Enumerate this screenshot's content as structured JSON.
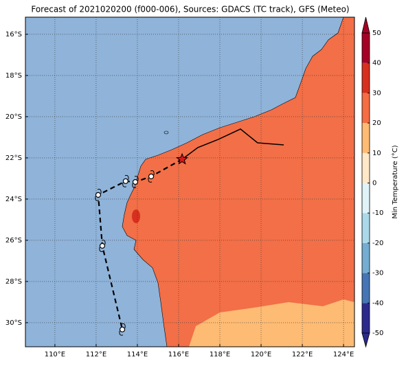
{
  "chart_data": {
    "type": "map",
    "title": "Forecast of 2021020200 (f000-006), Sources: GDACS (TC track), GFS (Meteo)",
    "xlim": [
      108.57,
      124.53
    ],
    "ylim": [
      -31.17,
      -15.17
    ],
    "xticks": [
      {
        "value": 110,
        "label": "110°E"
      },
      {
        "value": 112,
        "label": "112°E"
      },
      {
        "value": 114,
        "label": "114°E"
      },
      {
        "value": 116,
        "label": "116°E"
      },
      {
        "value": 118,
        "label": "118°E"
      },
      {
        "value": 120,
        "label": "120°E"
      },
      {
        "value": 122,
        "label": "122°E"
      },
      {
        "value": 124,
        "label": "124°E"
      }
    ],
    "yticks": [
      {
        "value": -16,
        "label": "16°S"
      },
      {
        "value": -18,
        "label": "18°S"
      },
      {
        "value": -20,
        "label": "20°S"
      },
      {
        "value": -22,
        "label": "22°S"
      },
      {
        "value": -24,
        "label": "24°S"
      },
      {
        "value": -26,
        "label": "26°S"
      },
      {
        "value": -28,
        "label": "28°S"
      },
      {
        "value": -30,
        "label": "30°S"
      }
    ],
    "grid": true,
    "forecast_track": {
      "lon": [
        116.17,
        114.67,
        113.9,
        113.43,
        112.1,
        112.3,
        113.27
      ],
      "lat": [
        -22.07,
        -22.9,
        -23.17,
        -23.13,
        -23.8,
        -26.27,
        -30.33
      ]
    },
    "past_track": {
      "lon": [
        116.17,
        116.93,
        117.93,
        119.0,
        119.83,
        121.1
      ],
      "lat": [
        -22.07,
        -21.5,
        -21.1,
        -20.6,
        -21.27,
        -21.37
      ]
    },
    "colorbar": {
      "label": "Min Temperature (°C)",
      "lim": [
        -50,
        50
      ],
      "ticks": [
        -50,
        -40,
        -30,
        -20,
        -10,
        0,
        10,
        20,
        30,
        40,
        50
      ],
      "colors": [
        "#2b2a8c",
        "#4575b4",
        "#74add1",
        "#abd9e9",
        "#e0f3f8",
        "#fee8c8",
        "#fdbb74",
        "#f46d43",
        "#d7301f",
        "#a50026"
      ]
    }
  }
}
